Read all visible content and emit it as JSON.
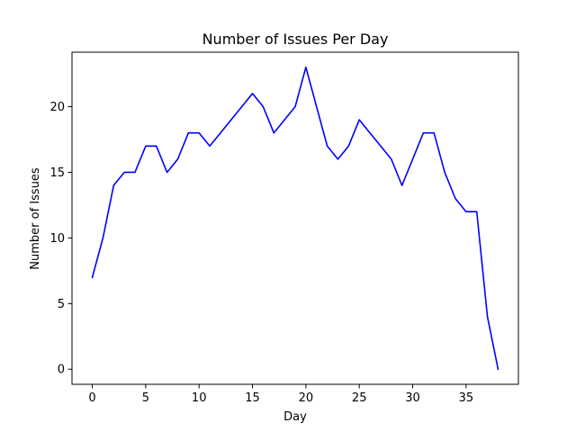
{
  "chart_data": {
    "type": "line",
    "title": "Number of Issues Per Day",
    "xlabel": "Day",
    "ylabel": "Number of Issues",
    "xlim": [
      -1.9,
      39.9
    ],
    "ylim": [
      -1.15,
      24.15
    ],
    "xticks": [
      0,
      5,
      10,
      15,
      20,
      25,
      30,
      35
    ],
    "yticks": [
      0,
      5,
      10,
      15,
      20
    ],
    "grid": false,
    "legend": "none",
    "series": [
      {
        "color": "#0000ff",
        "x": [
          0,
          1,
          2,
          3,
          4,
          5,
          6,
          7,
          8,
          9,
          10,
          11,
          12,
          13,
          14,
          15,
          16,
          17,
          18,
          19,
          20,
          21,
          22,
          23,
          24,
          25,
          26,
          27,
          28,
          29,
          30,
          31,
          32,
          33,
          34,
          35,
          36,
          37,
          38
        ],
        "y": [
          7,
          10,
          14,
          15,
          15,
          17,
          17,
          15,
          16,
          18,
          18,
          17,
          18,
          19,
          20,
          21,
          20,
          18,
          19,
          20,
          23,
          20,
          17,
          16,
          17,
          19,
          18,
          17,
          16,
          14,
          16,
          18,
          18,
          15,
          13,
          12,
          12,
          4,
          0
        ]
      }
    ]
  }
}
